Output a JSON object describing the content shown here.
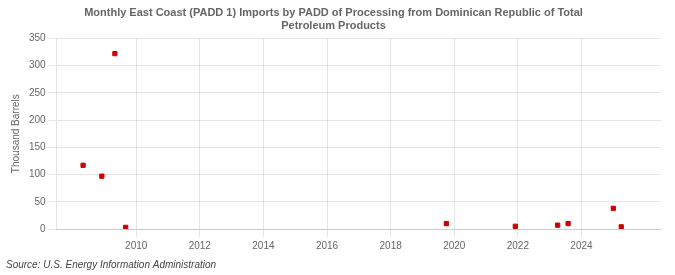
{
  "chart_data": {
    "type": "scatter",
    "title": "Monthly East Coast (PADD 1) Imports by PADD of Processing from Dominican Republic of Total\nPetroleum Products",
    "ylabel": "Thousand Barrels",
    "source": "Source: U.S. Energy Information Administration",
    "x": [
      2008.33,
      2008.92,
      2009.33,
      2009.67,
      2019.75,
      2021.92,
      2023.25,
      2023.58,
      2025.0,
      2025.25
    ],
    "values": [
      117,
      97,
      322,
      3,
      10,
      5,
      7,
      10,
      38,
      4
    ],
    "color": "#cc0000",
    "marker": "square",
    "xlim": [
      2007.5,
      2026.5
    ],
    "xticks": [
      2010,
      2012,
      2014,
      2016,
      2018,
      2020,
      2022,
      2024
    ],
    "ylim": [
      0,
      350
    ],
    "yticks": [
      0,
      50,
      100,
      150,
      200,
      250,
      300,
      350
    ],
    "grid": true
  }
}
